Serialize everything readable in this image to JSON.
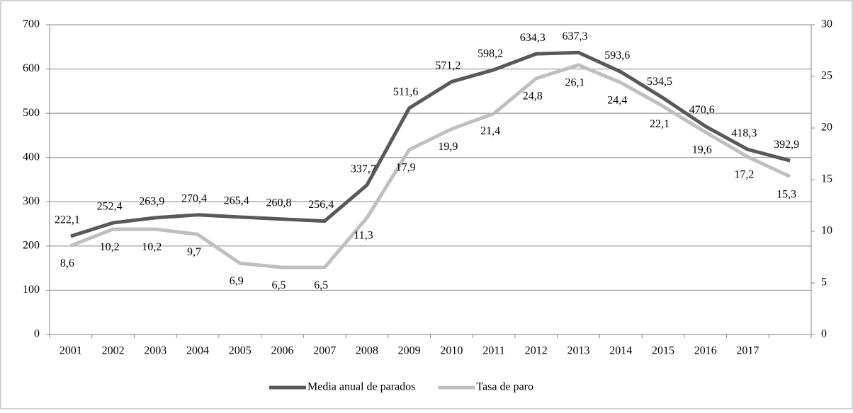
{
  "chart_data": {
    "type": "line",
    "categories": [
      "2001",
      "2002",
      "2003",
      "2004",
      "2005",
      "2006",
      "2007",
      "2008",
      "2009",
      "2010",
      "2011",
      "2012",
      "2013",
      "2014",
      "2015",
      "2016",
      "2017",
      null
    ],
    "series": [
      {
        "name": "Media anual de parados",
        "color": "#595959",
        "values": [
          222.1,
          252.4,
          263.9,
          270.4,
          265.4,
          260.8,
          256.4,
          337.7,
          511.6,
          571.2,
          598.2,
          634.3,
          637.3,
          593.6,
          534.5,
          470.6,
          418.3,
          392.9
        ],
        "value_labels": [
          "222,1",
          "252,4",
          "263,9",
          "270,4",
          "265,4",
          "260,8",
          "256,4",
          "337,7",
          "511,6",
          "571,2",
          "598,2",
          "634,3",
          "637,3",
          "593,6",
          "534,5",
          "470,6",
          "418,3",
          "392,9"
        ]
      },
      {
        "name": "Tasa de paro",
        "color": "#bfbfbf",
        "axis": "y2",
        "values": [
          8.6,
          10.2,
          10.2,
          9.7,
          6.9,
          6.5,
          6.5,
          11.3,
          17.9,
          19.9,
          21.4,
          24.8,
          26.1,
          24.4,
          22.1,
          19.6,
          17.2,
          15.3
        ],
        "value_labels": [
          "8,6",
          "10,2",
          "10,2",
          "9,7",
          "6,9",
          "6,5",
          "6,5",
          "11,3",
          "17,9",
          "19,9",
          "21,4",
          "24,8",
          "26,1",
          "24,4",
          "22,1",
          "19,6",
          "17,2",
          "15,3"
        ]
      }
    ],
    "ylim": [
      0,
      700
    ],
    "yticks": [
      0,
      100,
      200,
      300,
      400,
      500,
      600,
      700
    ],
    "y2lim": [
      0,
      30
    ],
    "y2ticks": [
      0,
      5,
      10,
      15,
      20,
      25,
      30
    ],
    "grid": true,
    "legend": "bottom"
  }
}
